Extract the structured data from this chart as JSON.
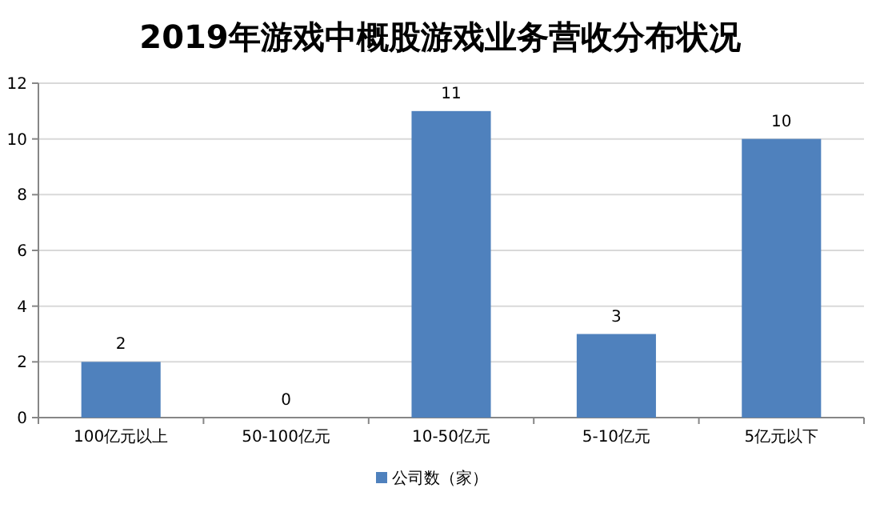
{
  "chart_data": {
    "type": "bar",
    "title": "2019年游戏中概股游戏业务营收分布状况",
    "categories": [
      "100亿元以上",
      "50-100亿元",
      "10-50亿元",
      "5-10亿元",
      "5亿元以下"
    ],
    "series": [
      {
        "name": "公司数（家）",
        "color": "#4f81bd",
        "values": [
          2,
          0,
          11,
          3,
          10
        ]
      }
    ],
    "ylim": [
      0,
      12
    ],
    "yticks": [
      0,
      2,
      4,
      6,
      8,
      10,
      12
    ],
    "grid": "y",
    "legend": "bottom",
    "data_labels": true
  }
}
